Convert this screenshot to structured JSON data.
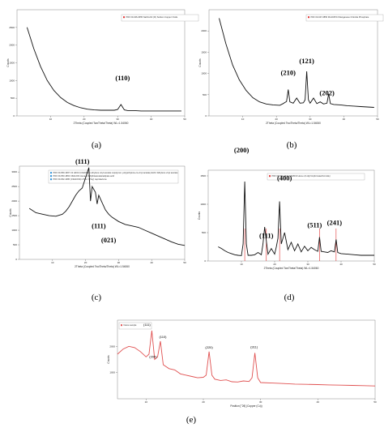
{
  "chart_data": [
    {
      "id": "a",
      "type": "line",
      "caption": "(a)",
      "xlabel": "2Theta (Coupled TwoTheta/Theta) WL=1.54060",
      "ylabel": "Counts",
      "xlim": [
        0,
        50
      ],
      "ylim": [
        0,
        3000
      ],
      "xticks": [
        10,
        20,
        30,
        40,
        50
      ],
      "yticks": [
        0,
        500,
        1000,
        1500,
        2000,
        2500
      ],
      "legend": [
        "PDF 00-046-0655 Na3CuO2 (III) Sodium Copper Oxide"
      ],
      "peaks": [
        {
          "label": "(110)",
          "x": 31
        }
      ],
      "series": [
        {
          "x": [
            3,
            5,
            7,
            9,
            11,
            13,
            15,
            17,
            19,
            21,
            23,
            25,
            27,
            29,
            30,
            31,
            32,
            33,
            35,
            37,
            39,
            41,
            43,
            45,
            47,
            49
          ],
          "values": [
            2500,
            1900,
            1400,
            1000,
            720,
            520,
            380,
            290,
            230,
            190,
            170,
            160,
            160,
            160,
            180,
            320,
            170,
            150,
            150,
            140,
            140,
            140,
            140,
            140,
            140,
            140
          ]
        }
      ],
      "colors": {
        "line": "#111111",
        "legend_marker": "#e03030"
      }
    },
    {
      "id": "b",
      "type": "line",
      "caption": "(b)",
      "xlabel": "2Theta (Coupled TwoTheta/Theta) WL=1.54060",
      "ylabel": "Counts",
      "xlim": [
        0,
        50
      ],
      "ylim": [
        0,
        2500
      ],
      "xticks": [
        10,
        20,
        30,
        40,
        50
      ],
      "yticks": [
        0,
        500,
        1000,
        1500,
        2000
      ],
      "legend": [
        "PDF 00-047-0856 Mn2ClPO4 Manganese Chloride Phosphate"
      ],
      "peaks": [
        {
          "label": "(210)",
          "x": 23.5
        },
        {
          "label": "(121)",
          "x": 29
        },
        {
          "label": "(202)",
          "x": 35
        }
      ],
      "series": [
        {
          "x": [
            3,
            5,
            7,
            9,
            11,
            13,
            15,
            17,
            19,
            21,
            22,
            23,
            23.5,
            24,
            25,
            26,
            27,
            28,
            28.5,
            29,
            29.5,
            30,
            31,
            32,
            33,
            34,
            35,
            35.5,
            36,
            37,
            39,
            41,
            43,
            45,
            47,
            49
          ],
          "values": [
            2300,
            1700,
            1200,
            850,
            600,
            430,
            330,
            280,
            260,
            250,
            290,
            340,
            620,
            330,
            300,
            420,
            300,
            310,
            380,
            1050,
            380,
            300,
            420,
            290,
            330,
            280,
            300,
            520,
            290,
            270,
            260,
            240,
            230,
            220,
            210,
            200
          ]
        }
      ],
      "colors": {
        "line": "#111111",
        "legend_marker": "#e03030"
      }
    },
    {
      "id": "c",
      "type": "line",
      "caption": "(c)",
      "xlabel": "2Theta (Coupled TwoTheta/Theta) WL=1.54060",
      "ylabel": "Counts",
      "xlim": [
        0,
        50
      ],
      "ylim": [
        0,
        3200
      ],
      "xticks": [
        10,
        20,
        30,
        40,
        50
      ],
      "yticks": [
        0,
        500,
        1000,
        1500,
        2000,
        2500,
        3000
      ],
      "legend": [
        "PDF 00-050-1997 C2 H4O2 (C4H6O2)n ethylene vinyl acetate copolymer, poly(ethylene-co-vinyl acetate) EVA / Ethylene vinyl acetate",
        "PDF 00-053-1863 C6H12O4 Hexa-1,6-diylbisacetate/adipate acid",
        "PDF 00-062-1086 (C3H10O2)n PCL / (Poly) caprolactone"
      ],
      "peaks": [
        {
          "label": "(111)",
          "x": 21
        },
        {
          "label": "(111)",
          "x": 23.5
        },
        {
          "label": "(021)",
          "x": 26
        }
      ],
      "series": [
        {
          "x": [
            3,
            5,
            7,
            9,
            11,
            13,
            14,
            15,
            16,
            17,
            18,
            19,
            20,
            21,
            21.5,
            22,
            23,
            23.5,
            24,
            25,
            26,
            27,
            28,
            30,
            32,
            34,
            36,
            38,
            40,
            42,
            44,
            46,
            48,
            50
          ],
          "values": [
            1750,
            1600,
            1550,
            1500,
            1480,
            1550,
            1650,
            1800,
            2000,
            2200,
            2350,
            2450,
            2800,
            3150,
            2000,
            2500,
            2300,
            1900,
            2200,
            1950,
            1700,
            1550,
            1450,
            1300,
            1200,
            1150,
            1100,
            1000,
            900,
            800,
            700,
            600,
            520,
            480
          ]
        }
      ],
      "colors": {
        "line": "#111111",
        "legend_marker": "#2a8fd6"
      }
    },
    {
      "id": "d",
      "type": "line",
      "caption": "(d)",
      "xlabel": "2Theta (Coupled TwoTheta/Theta) WL=1.54060",
      "ylabel": "Counts",
      "xlim": [
        0,
        50
      ],
      "ylim": [
        0,
        1600
      ],
      "xticks": [
        10,
        20,
        30,
        40,
        50
      ],
      "yticks": [
        0,
        500,
        1000,
        1500
      ],
      "legend": [
        "PDF 00-064-1313 C4H8O4 Hexa-1,6-diyl bis(formate/bromide)"
      ],
      "peaks": [
        {
          "label": "(200)",
          "x": 11
        },
        {
          "label": "(111)",
          "x": 17.5
        },
        {
          "label": "(400)",
          "x": 21.5
        },
        {
          "label": "(511)",
          "x": 33.5
        },
        {
          "label": "(241)",
          "x": 38.5
        }
      ],
      "series": [
        {
          "x": [
            3,
            4,
            5,
            6,
            7,
            8,
            9,
            10,
            10.5,
            11,
            11.5,
            12,
            13,
            14,
            15,
            16,
            16.5,
            17,
            17.5,
            18,
            19,
            20,
            20.5,
            21,
            21.5,
            22,
            23,
            24,
            25,
            26,
            27,
            28,
            29,
            30,
            31,
            32,
            33,
            33.5,
            34,
            35,
            36,
            37,
            38,
            38.5,
            39,
            40,
            42,
            44,
            46,
            48,
            50
          ],
          "values": [
            250,
            220,
            180,
            150,
            130,
            110,
            100,
            95,
            300,
            1400,
            300,
            100,
            100,
            110,
            150,
            110,
            300,
            600,
            350,
            120,
            220,
            120,
            250,
            400,
            1050,
            300,
            500,
            200,
            330,
            180,
            300,
            160,
            260,
            180,
            240,
            200,
            170,
            420,
            170,
            160,
            150,
            180,
            160,
            380,
            150,
            130,
            120,
            110,
            100,
            100,
            100
          ]
        }
      ],
      "colors": {
        "line": "#111111",
        "legend_marker": "#e03030",
        "sticks": "#e03030"
      }
    },
    {
      "id": "e",
      "type": "line",
      "caption": "(e)",
      "xlabel": "Position [°2θ] (Copper (Cu))",
      "ylabel": "Counts",
      "xlim": [
        5,
        50
      ],
      "ylim": [
        0,
        3000
      ],
      "xticks": [
        10,
        20,
        30,
        40,
        50
      ],
      "yticks": [
        1000,
        2000
      ],
      "legend": [
        "Name sample"
      ],
      "peaks": [
        {
          "label": "(200)",
          "x": 11.5
        },
        {
          "label": "(110)",
          "x": 12.5
        },
        {
          "label": "(111)",
          "x": 11.0
        },
        {
          "label": "(220)",
          "x": 21
        },
        {
          "label": "(311)",
          "x": 29
        }
      ],
      "series": [
        {
          "x": [
            5,
            6,
            7,
            8,
            9,
            10,
            10.5,
            11,
            11.5,
            12,
            12.5,
            13,
            14,
            15,
            16,
            17,
            18,
            19,
            20,
            20.5,
            21,
            21.5,
            22,
            23,
            24,
            25,
            26,
            27,
            28,
            28.5,
            29,
            29.5,
            30,
            32,
            34,
            36,
            38,
            40,
            42,
            44,
            46,
            48,
            50
          ],
          "values": [
            1700,
            1900,
            2000,
            1950,
            1800,
            1600,
            1700,
            2600,
            1500,
            1600,
            2200,
            1300,
            1150,
            1100,
            950,
            900,
            850,
            800,
            820,
            900,
            1800,
            900,
            750,
            700,
            720,
            650,
            640,
            680,
            660,
            800,
            1750,
            800,
            620,
            600,
            580,
            560,
            550,
            540,
            530,
            520,
            510,
            500,
            490
          ]
        }
      ],
      "colors": {
        "line": "#e05050"
      }
    }
  ]
}
